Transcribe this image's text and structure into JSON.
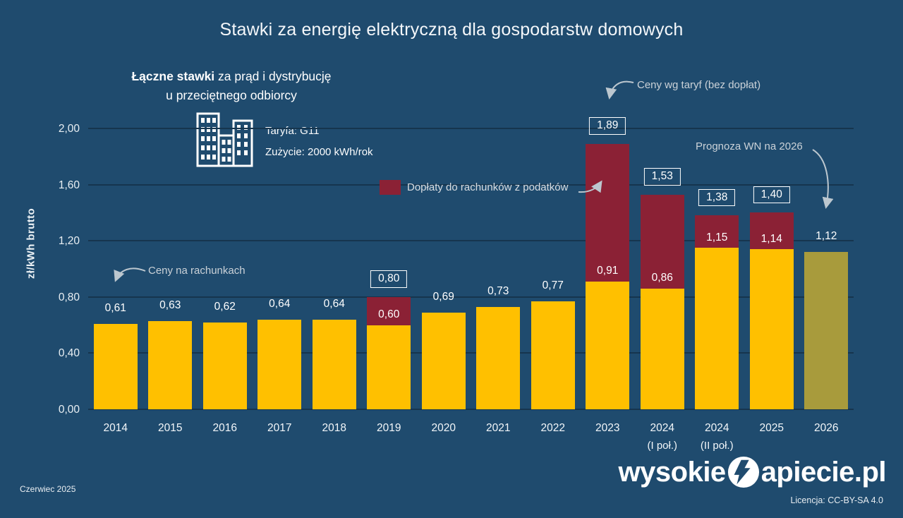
{
  "header": {
    "title": "Stawki za energię elektryczną dla gospodarstw domowych",
    "subtitle_bold": "Łączne stawki",
    "subtitle_rest": " za prąd i dystrybucję",
    "subtitle_line2": "u przeciętnego odbiorcy",
    "tariff_line1": "Taryfa: G11",
    "tariff_line2": "Zużycie: 2000 kWh/rok"
  },
  "annotations": {
    "bills_note": "Ceny na rachunkach",
    "tariff_note": "Ceny wg taryf (bez dopłat)",
    "forecast_note": "Prognoza WN na 2026",
    "legend_label": "Dopłaty do rachunków z podatków"
  },
  "footer": {
    "date": "Czerwiec  2025",
    "logo_left": "wysokie",
    "logo_right": "apiecie.pl",
    "license": "Licencja: CC-BY-SA 4.0"
  },
  "colors": {
    "background": "#1F4B6E",
    "bar_billed": "#FFC000",
    "bar_subsidy": "#8B2135",
    "bar_forecast": "#A89B3C",
    "gridline": "#16354E",
    "annotation_text": "#CBD2D8"
  },
  "chart_data": {
    "type": "bar",
    "stacked": true,
    "title": "Stawki za energię elektryczną dla gospodarstw domowych",
    "ylabel": "zł/kWh  brutto",
    "ylim": [
      0,
      2.0
    ],
    "grid": true,
    "legend_position": "middle-left of plot",
    "yticks": [
      {
        "value": 0.0,
        "label": "0,00"
      },
      {
        "value": 0.4,
        "label": "0,40"
      },
      {
        "value": 0.8,
        "label": "0,80"
      },
      {
        "value": 1.2,
        "label": "1,20"
      },
      {
        "value": 1.6,
        "label": "1,60"
      },
      {
        "value": 2.0,
        "label": "2,00"
      }
    ],
    "series_names": [
      "Ceny na rachunkach",
      "Dopłaty do rachunków z podatków",
      "Prognoza WN na 2026"
    ],
    "series": [
      {
        "name": "Ceny na rachunkach",
        "color": "#FFC000",
        "values": [
          0.61,
          0.63,
          0.62,
          0.64,
          0.64,
          0.6,
          0.69,
          0.73,
          0.77,
          0.91,
          0.86,
          1.15,
          1.14,
          1.12
        ]
      },
      {
        "name": "Dopłaty do rachunków z podatków",
        "color": "#8B2135",
        "values": [
          0,
          0,
          0,
          0,
          0,
          0.2,
          0,
          0,
          0,
          0.98,
          0.67,
          0.23,
          0.26,
          0
        ]
      }
    ],
    "bars": [
      {
        "category": "2014",
        "category_line2": "",
        "base": 0.61,
        "base_label": "0,61",
        "extra": 0,
        "total": 0.61,
        "total_label": "",
        "boxed": false,
        "forecast": false
      },
      {
        "category": "2015",
        "category_line2": "",
        "base": 0.63,
        "base_label": "0,63",
        "extra": 0,
        "total": 0.63,
        "total_label": "",
        "boxed": false,
        "forecast": false
      },
      {
        "category": "2016",
        "category_line2": "",
        "base": 0.62,
        "base_label": "0,62",
        "extra": 0,
        "total": 0.62,
        "total_label": "",
        "boxed": false,
        "forecast": false
      },
      {
        "category": "2017",
        "category_line2": "",
        "base": 0.64,
        "base_label": "0,64",
        "extra": 0,
        "total": 0.64,
        "total_label": "",
        "boxed": false,
        "forecast": false
      },
      {
        "category": "2018",
        "category_line2": "",
        "base": 0.64,
        "base_label": "0,64",
        "extra": 0,
        "total": 0.64,
        "total_label": "",
        "boxed": false,
        "forecast": false
      },
      {
        "category": "2019",
        "category_line2": "",
        "base": 0.6,
        "base_label": "0,60",
        "extra": 0.2,
        "total": 0.8,
        "total_label": "0,80",
        "boxed": true,
        "forecast": false
      },
      {
        "category": "2020",
        "category_line2": "",
        "base": 0.69,
        "base_label": "0,69",
        "extra": 0,
        "total": 0.69,
        "total_label": "",
        "boxed": false,
        "forecast": false
      },
      {
        "category": "2021",
        "category_line2": "",
        "base": 0.73,
        "base_label": "0,73",
        "extra": 0,
        "total": 0.73,
        "total_label": "",
        "boxed": false,
        "forecast": false
      },
      {
        "category": "2022",
        "category_line2": "",
        "base": 0.77,
        "base_label": "0,77",
        "extra": 0,
        "total": 0.77,
        "total_label": "",
        "boxed": false,
        "forecast": false
      },
      {
        "category": "2023",
        "category_line2": "",
        "base": 0.91,
        "base_label": "0,91",
        "extra": 0.98,
        "total": 1.89,
        "total_label": "1,89",
        "boxed": true,
        "forecast": false
      },
      {
        "category": "2024",
        "category_line2": "(I poł.)",
        "base": 0.86,
        "base_label": "0,86",
        "extra": 0.67,
        "total": 1.53,
        "total_label": "1,53",
        "boxed": true,
        "forecast": false
      },
      {
        "category": "2024",
        "category_line2": "(II poł.)",
        "base": 1.15,
        "base_label": "1,15",
        "extra": 0.23,
        "total": 1.38,
        "total_label": "1,38",
        "boxed": true,
        "forecast": false
      },
      {
        "category": "2025",
        "category_line2": "",
        "base": 1.14,
        "base_label": "1,14",
        "extra": 0.26,
        "total": 1.4,
        "total_label": "1,40",
        "boxed": true,
        "forecast": false
      },
      {
        "category": "2026",
        "category_line2": "",
        "base": 1.12,
        "base_label": "",
        "extra": 0,
        "total": 1.12,
        "total_label": "1,12",
        "boxed": false,
        "forecast": true
      }
    ]
  }
}
